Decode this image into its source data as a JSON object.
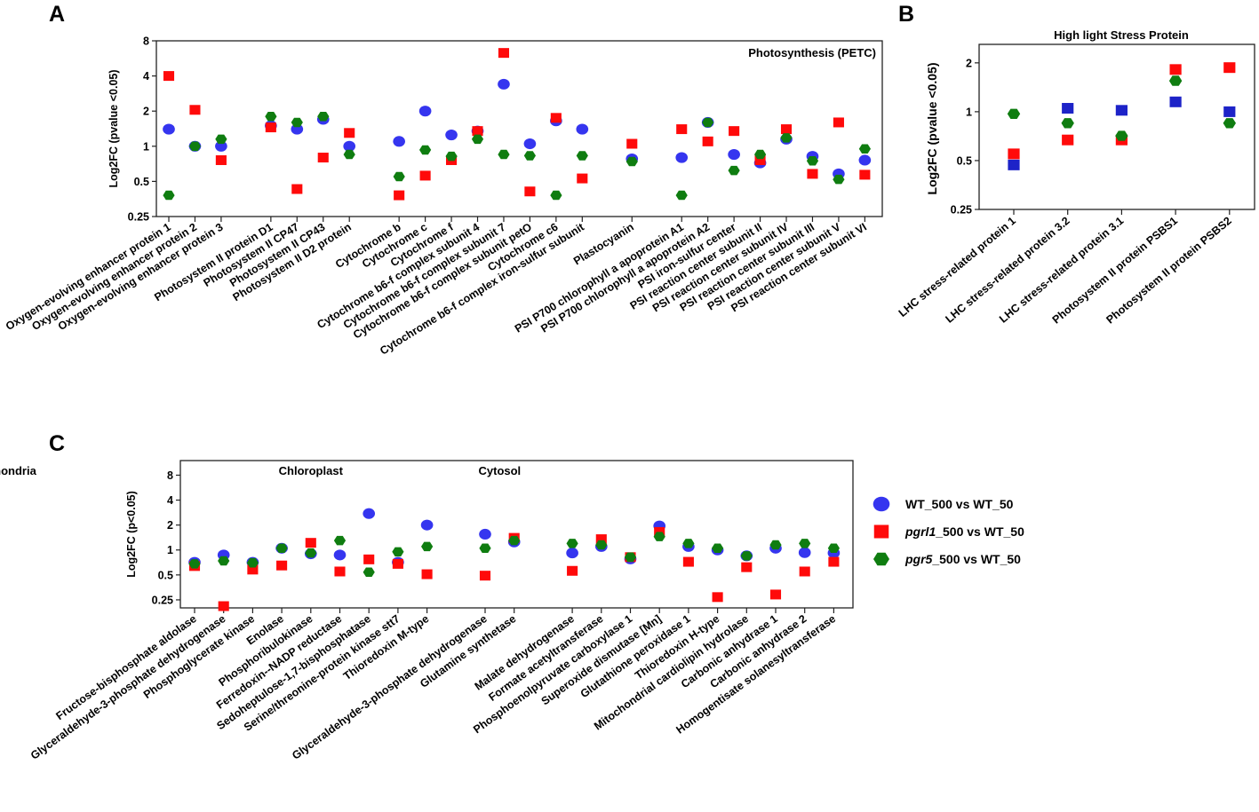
{
  "colors": {
    "wt": "#3535ef",
    "wt_b": "#1d23c8",
    "pgrl1": "#ff0a0a",
    "pgr5": "#0f7d10"
  },
  "legend": [
    {
      "key": "wt",
      "prefix": "WT_500 vs WT_50",
      "italic_part": "",
      "suffix": "",
      "shape": "circle"
    },
    {
      "key": "pgrl1",
      "prefix": "",
      "italic_part": "pgrl1",
      "suffix": "_500 vs WT_50",
      "shape": "square"
    },
    {
      "key": "pgr5",
      "prefix": "",
      "italic_part": "pgr5",
      "suffix": "_500 vs WT_50",
      "shape": "hexagon"
    }
  ],
  "chart_data": [
    {
      "panel": "A",
      "type": "scatter",
      "title": "Photosynthesis (PETC)",
      "ylabel": "Log2FC (pvalue <0.05)",
      "yscale": "log2",
      "ylim": [
        0.25,
        8
      ],
      "yticks": [
        "0.25",
        "0.5",
        "1",
        "2",
        "4",
        "8"
      ],
      "categories": [
        "Oxygen-evolving enhancer protein 1",
        "Oxygen-evolving enhancer protein 2",
        "Oxygen-evolving enhancer protein 3",
        "Photosystem II protein D1",
        "Photosystem II CP47",
        "Photosystem II CP43",
        "Photosystem II D2 protein",
        "Cytochrome b",
        "Cytochrome c",
        "Cytochrome f",
        "Cytochrome b6-f complex subunit 4",
        "Cytochrome b6-f complex subunit 7",
        "Cytochrome b6-f complex subunit petO",
        "Cytochrome c6",
        "Cytochrome b6-f complex iron-sulfur subunit",
        "Plastocyanin",
        "PSI P700 chlorophyll a apoprotein A1",
        "PSI P700 chlorophyll a apoprotein A2",
        "PSI iron-sulfur center",
        "PSI reaction center subunit II",
        "PSI reaction center subunit IV",
        "PSI reaction center subunit III",
        "PSI reaction center subunit V",
        "PSI reaction center subunit VI"
      ],
      "series": [
        {
          "name": "WT_500 vs WT_50",
          "values": [
            1.4,
            1.0,
            1.0,
            1.5,
            1.4,
            1.7,
            1.0,
            1.1,
            2.0,
            1.25,
            1.35,
            3.4,
            1.05,
            1.65,
            1.4,
            0.78,
            0.8,
            1.6,
            0.85,
            0.72,
            1.15,
            0.82,
            0.58,
            0.76
          ]
        },
        {
          "name": "pgrl1_500 vs WT_50",
          "values": [
            4.0,
            2.05,
            0.76,
            1.45,
            0.43,
            0.8,
            1.3,
            0.38,
            0.56,
            0.76,
            1.35,
            6.3,
            0.41,
            1.75,
            0.53,
            1.05,
            1.4,
            1.1,
            1.35,
            0.76,
            1.4,
            0.58,
            1.6,
            0.57
          ]
        },
        {
          "name": "pgr5_500 vs WT_50",
          "values": [
            0.38,
            1.0,
            1.15,
            1.8,
            1.6,
            1.8,
            0.85,
            0.55,
            0.93,
            0.82,
            1.15,
            0.85,
            0.83,
            0.38,
            0.83,
            0.74,
            0.38,
            1.6,
            0.62,
            0.85,
            1.18,
            0.75,
            0.52,
            0.95
          ]
        }
      ]
    },
    {
      "panel": "B",
      "type": "scatter",
      "title": "High light Stress Protein",
      "ylabel": "Log2FC (pvalue <0.05)",
      "yscale": "log2",
      "ylim": [
        0.25,
        2.6
      ],
      "yticks": [
        "0.25",
        "0.5",
        "1",
        "2"
      ],
      "categories": [
        "LHC stress-related protein 1",
        "LHC stress-related protein 3.2",
        "LHC stress-related protein 3.1",
        "Photosystem II protein PSBS1",
        "Photosystem II protein PSBS2"
      ],
      "series": [
        {
          "name": "WT_500 vs WT_50",
          "values": [
            0.47,
            1.05,
            1.02,
            1.15,
            1.0
          ]
        },
        {
          "name": "pgrl1_500 vs WT_50",
          "values": [
            0.55,
            0.67,
            0.67,
            1.82,
            1.87
          ]
        },
        {
          "name": "pgr5_500 vs WT_50",
          "values": [
            0.97,
            0.85,
            0.71,
            1.55,
            0.85
          ]
        }
      ]
    },
    {
      "panel": "C",
      "type": "scatter",
      "ylabel": "Log2FC (p<0.05)",
      "yscale": "log2",
      "ylim": [
        0.2,
        12
      ],
      "yticks": [
        "0.25",
        "0.5",
        "1",
        "2",
        "4",
        "8"
      ],
      "groups": [
        {
          "label": "Chloroplast",
          "start": 0,
          "end": 8
        },
        {
          "label": "Cytosol",
          "start": 9,
          "end": 10
        },
        {
          "label": "Mitochondria",
          "start": 11,
          "end": 22
        }
      ],
      "categories": [
        "Fructose-bisphosphate aldolase",
        "Glyceraldehyde-3-phosphate dehydrogenase",
        "Phosphoglycerate kinase",
        "Enolase",
        "Phosphoribulokinase",
        "Ferredoxin--NADP reductase",
        "Sedoheptulose-1,7-bisphosphatase",
        "Serine/threonine-protein kinase stt7",
        "Thioredoxin M-type",
        "Glyceraldehyde-3-phosphate dehydrogenase",
        "Glutamine synthetase",
        "Malate dehydrogenase",
        "Formate acetyltransferase",
        "Phosphoenolpyruvate carboxylase 1",
        "Superoxide dismutase [Mn]",
        "Glutathione peroxidase 1",
        "Thioredoxin H-type",
        "Mitochondrial cardiolipin hydrolase",
        "Carbonic anhydrase 1",
        "Carbonic anhydrase 2",
        "Homogentisate solanesyltransferase"
      ],
      "category_slots": [
        0,
        1,
        2,
        3,
        4,
        5,
        6,
        7,
        8,
        10,
        11,
        13,
        14,
        15,
        16,
        17,
        18,
        19,
        20,
        21,
        22
      ],
      "series": [
        {
          "name": "WT_500 vs WT_50",
          "values": [
            0.71,
            0.87,
            0.71,
            1.05,
            0.9,
            0.87,
            2.75,
            0.71,
            2.0,
            1.55,
            1.25,
            0.92,
            1.1,
            0.78,
            1.95,
            1.1,
            1.0,
            0.85,
            1.05,
            0.93,
            0.92
          ]
        },
        {
          "name": "pgrl1_500 vs WT_50",
          "values": [
            0.64,
            0.21,
            0.58,
            0.65,
            1.22,
            0.55,
            0.77,
            0.68,
            0.51,
            0.49,
            1.4,
            0.56,
            1.35,
            0.82,
            1.65,
            0.72,
            0.27,
            0.62,
            0.29,
            0.55,
            0.72
          ]
        },
        {
          "name": "pgr5_500 vs WT_50",
          "values": [
            0.68,
            0.74,
            0.7,
            1.05,
            0.92,
            1.3,
            0.54,
            0.95,
            1.1,
            1.05,
            1.3,
            1.2,
            1.15,
            0.82,
            1.45,
            1.2,
            1.05,
            0.85,
            1.15,
            1.2,
            1.05
          ]
        }
      ]
    }
  ]
}
